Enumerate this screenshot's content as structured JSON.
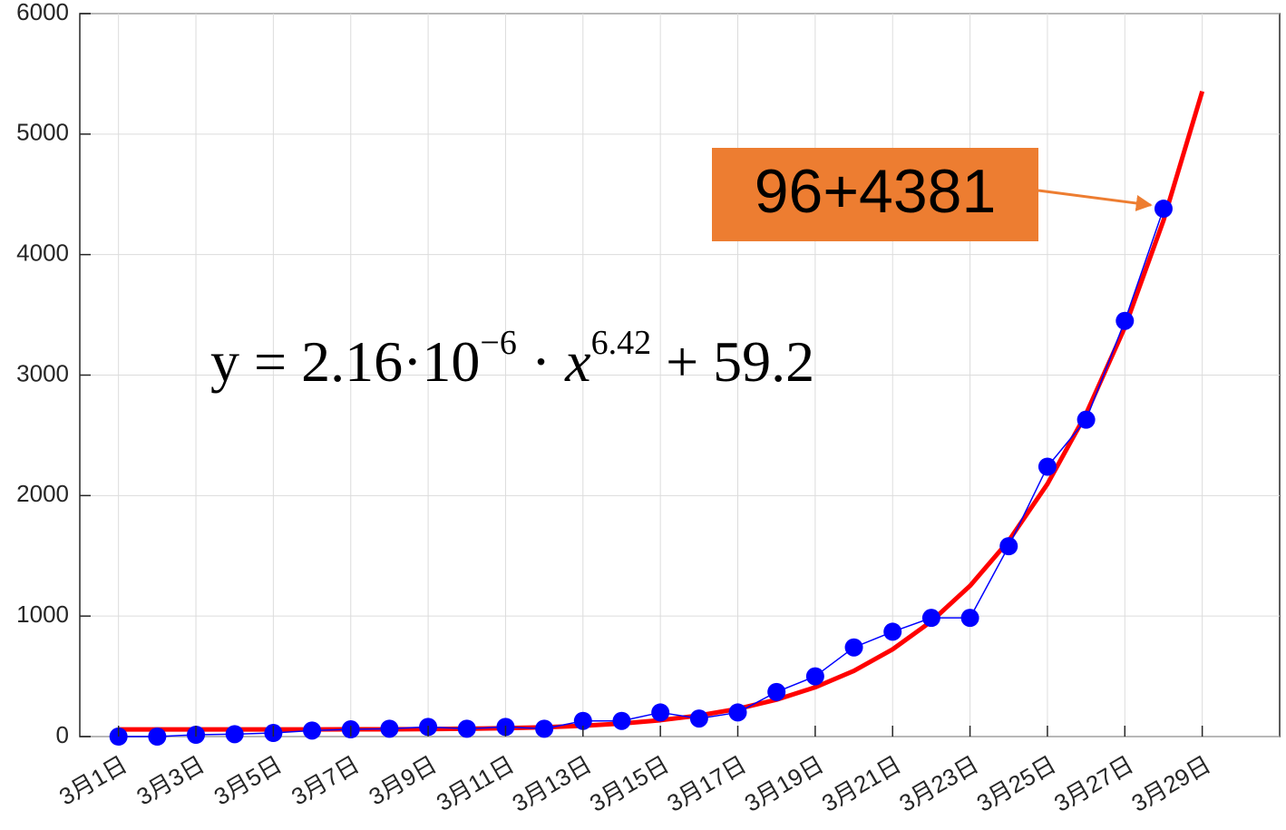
{
  "chart_data": {
    "type": "line",
    "x": [
      1,
      2,
      3,
      4,
      5,
      6,
      7,
      8,
      9,
      10,
      11,
      12,
      13,
      14,
      15,
      16,
      17,
      18,
      19,
      20,
      21,
      22,
      23,
      24,
      25,
      26,
      27,
      28,
      29
    ],
    "xlim": [
      0,
      31
    ],
    "xticks": [
      {
        "value": 1,
        "label": "3月1日"
      },
      {
        "value": 3,
        "label": "3月3日"
      },
      {
        "value": 5,
        "label": "3月5日"
      },
      {
        "value": 7,
        "label": "3月7日"
      },
      {
        "value": 9,
        "label": "3月9日"
      },
      {
        "value": 11,
        "label": "3月11日"
      },
      {
        "value": 13,
        "label": "3月13日"
      },
      {
        "value": 15,
        "label": "3月15日"
      },
      {
        "value": 17,
        "label": "3月17日"
      },
      {
        "value": 19,
        "label": "3月19日"
      },
      {
        "value": 21,
        "label": "3月21日"
      },
      {
        "value": 23,
        "label": "3月23日"
      },
      {
        "value": 25,
        "label": "3月25日"
      },
      {
        "value": 27,
        "label": "3月27日"
      },
      {
        "value": 29,
        "label": "3月29日"
      }
    ],
    "ylim": [
      0,
      6000
    ],
    "yticks": [
      0,
      1000,
      2000,
      3000,
      4000,
      5000,
      6000
    ],
    "grid": true,
    "series": [
      {
        "color": "#0000ff",
        "markers": true,
        "values": [
          0,
          0,
          15,
          20,
          30,
          50,
          60,
          65,
          80,
          65,
          80,
          65,
          130,
          130,
          200,
          150,
          200,
          370,
          500,
          740,
          870,
          985,
          985,
          1580,
          2240,
          2630,
          3450,
          4381,
          null
        ]
      },
      {
        "color": "#ff0000",
        "markers": false,
        "values": [
          59.2,
          59.2,
          59.2,
          59.2,
          59.3,
          59.4,
          59.8,
          60.6,
          62.1,
          64.9,
          69.7,
          77.6,
          89.8,
          108.5,
          135.9,
          175,
          230,
          306,
          409,
          545,
          724,
          956,
          1251,
          1625,
          2096,
          2679,
          3396,
          4284,
          5355
        ]
      }
    ],
    "equation": {
      "lhs": "y = 2.16·10",
      "exp1": "−6",
      "mid": " · ",
      "var": "x",
      "exp2": "6.42",
      "tail": " + 59.2"
    },
    "annotation": {
      "text": "96+4381",
      "color": "#ed7d31"
    }
  }
}
